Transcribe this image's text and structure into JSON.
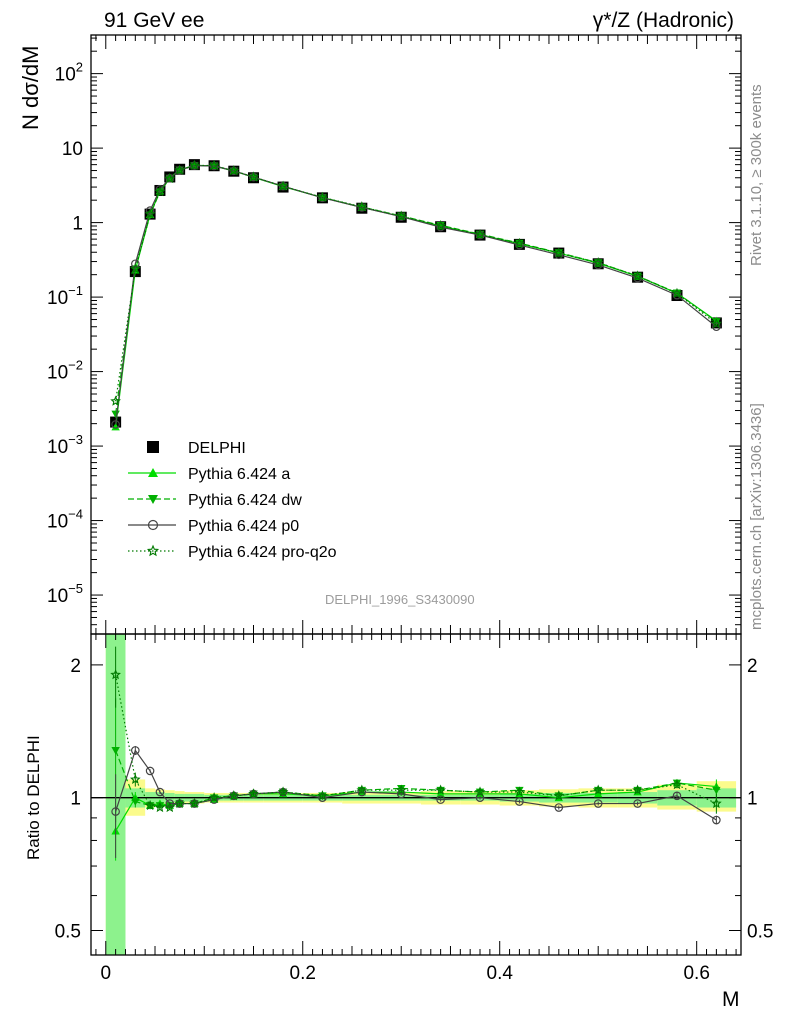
{
  "header": {
    "left": "91 GeV ee",
    "right": "γ*/Z (Hadronic)"
  },
  "side": {
    "rivet": "Rivet 3.1.10, ≥ 300k events",
    "mcplots": "mcplots.cern.ch [arXiv:1306.3436]"
  },
  "colors": {
    "data": "#000000",
    "a": "#00dd00",
    "dw": "#00b000",
    "p0": "#444444",
    "proq2o": "#007a00",
    "band_green": "#8df28d",
    "band_yellow": "#fbfb8c"
  },
  "chart_data": [
    {
      "type": "line",
      "name": "main",
      "title": "",
      "xlabel": "M",
      "ylabel": "N dσ/dM",
      "yscale": "log",
      "xlim": [
        -0.015,
        0.645
      ],
      "ylim": [
        3e-06,
        330
      ],
      "reference_label": "DELPHI_1996_S3430090",
      "legend_location": "lower-left",
      "y_ticks": [
        {
          "value": 100,
          "base": "10",
          "exp": "2"
        },
        {
          "value": 10,
          "base": "10",
          "exp": ""
        },
        {
          "value": 1,
          "base": "1",
          "exp": ""
        },
        {
          "value": 0.1,
          "base": "10",
          "exp": "−1"
        },
        {
          "value": 0.01,
          "base": "10",
          "exp": "−2"
        },
        {
          "value": 0.001,
          "base": "10",
          "exp": "−3"
        },
        {
          "value": 0.0001,
          "base": "10",
          "exp": "−4"
        },
        {
          "value": 1e-05,
          "base": "10",
          "exp": "−5"
        }
      ],
      "x": [
        0.01,
        0.03,
        0.045,
        0.055,
        0.065,
        0.075,
        0.09,
        0.11,
        0.13,
        0.15,
        0.18,
        0.22,
        0.26,
        0.3,
        0.34,
        0.38,
        0.42,
        0.46,
        0.5,
        0.54,
        0.58,
        0.62
      ],
      "series": [
        {
          "name": "DELPHI",
          "key": "data",
          "marker": "square",
          "values": [
            0.0021,
            0.22,
            1.3,
            2.7,
            4.1,
            5.2,
            6.0,
            5.8,
            4.9,
            4.0,
            3.0,
            2.15,
            1.56,
            1.18,
            0.88,
            0.68,
            0.51,
            0.39,
            0.28,
            0.185,
            0.105,
            0.045
          ]
        },
        {
          "name": "Pythia 6.424 a",
          "key": "a",
          "marker": "triangle-up",
          "dash": "",
          "values": [
            0.0018,
            0.23,
            1.28,
            2.65,
            4.0,
            5.1,
            5.9,
            5.75,
            4.93,
            4.05,
            3.05,
            2.17,
            1.6,
            1.21,
            0.9,
            0.69,
            0.52,
            0.39,
            0.285,
            0.19,
            0.113,
            0.048
          ]
        },
        {
          "name": "Pythia 6.424 dw",
          "key": "dw",
          "marker": "triangle-down",
          "dash": "6,3",
          "values": [
            0.0027,
            0.24,
            1.27,
            2.6,
            3.95,
            5.1,
            5.85,
            5.8,
            4.95,
            4.08,
            3.07,
            2.17,
            1.62,
            1.23,
            0.92,
            0.7,
            0.53,
            0.395,
            0.29,
            0.192,
            0.114,
            0.047
          ]
        },
        {
          "name": "Pythia 6.424 p0",
          "key": "p0",
          "marker": "circle-open",
          "dash": "",
          "values": [
            0.00195,
            0.28,
            1.45,
            2.8,
            3.95,
            5.05,
            5.82,
            5.75,
            4.95,
            4.08,
            3.08,
            2.15,
            1.6,
            1.2,
            0.87,
            0.68,
            0.5,
            0.37,
            0.27,
            0.18,
            0.106,
            0.04
          ]
        },
        {
          "name": "Pythia 6.424 pro-q2o",
          "key": "proq2o",
          "marker": "star-open",
          "dash": "1.5,2.5",
          "values": [
            0.004,
            0.24,
            1.3,
            2.6,
            3.9,
            5.05,
            5.85,
            5.85,
            4.97,
            4.1,
            3.08,
            2.18,
            1.63,
            1.22,
            0.91,
            0.69,
            0.525,
            0.39,
            0.29,
            0.192,
            0.112,
            0.044
          ]
        }
      ]
    },
    {
      "type": "line",
      "name": "ratio",
      "title": "",
      "xlabel": "M",
      "ylabel": "Ratio to DELPHI",
      "yscale": "log",
      "xlim": [
        -0.015,
        0.645
      ],
      "ylim": [
        0.44,
        2.35
      ],
      "x_ticks": [
        "0",
        "0.2",
        "0.4",
        "0.6"
      ],
      "x_tick_values": [
        0,
        0.2,
        0.4,
        0.6
      ],
      "y_ticks": [
        "2",
        "1",
        "0.5"
      ],
      "y_tick_values": [
        2,
        1,
        0.5
      ],
      "x": [
        0.01,
        0.03,
        0.045,
        0.055,
        0.065,
        0.075,
        0.09,
        0.11,
        0.13,
        0.15,
        0.18,
        0.22,
        0.26,
        0.3,
        0.34,
        0.38,
        0.42,
        0.46,
        0.5,
        0.54,
        0.58,
        0.62
      ],
      "band_bin_edges": [
        0.0,
        0.02,
        0.04,
        0.05,
        0.06,
        0.07,
        0.08,
        0.1,
        0.12,
        0.14,
        0.16,
        0.2,
        0.24,
        0.28,
        0.32,
        0.36,
        0.4,
        0.44,
        0.48,
        0.52,
        0.56,
        0.6,
        0.64
      ],
      "band_inner": [
        [
          0.44,
          2.35
        ],
        [
          0.95,
          1.05
        ],
        [
          0.97,
          1.03
        ],
        [
          0.97,
          1.03
        ],
        [
          0.975,
          1.025
        ],
        [
          0.98,
          1.02
        ],
        [
          0.98,
          1.02
        ],
        [
          0.985,
          1.015
        ],
        [
          0.985,
          1.015
        ],
        [
          0.985,
          1.015
        ],
        [
          0.985,
          1.015
        ],
        [
          0.985,
          1.015
        ],
        [
          0.985,
          1.015
        ],
        [
          0.985,
          1.015
        ],
        [
          0.985,
          1.015
        ],
        [
          0.985,
          1.015
        ],
        [
          0.98,
          1.02
        ],
        [
          0.975,
          1.025
        ],
        [
          0.975,
          1.025
        ],
        [
          0.97,
          1.03
        ],
        [
          0.96,
          1.04
        ],
        [
          0.95,
          1.05
        ]
      ],
      "band_outer": [
        [
          0.44,
          2.35
        ],
        [
          0.91,
          1.1
        ],
        [
          0.95,
          1.05
        ],
        [
          0.955,
          1.045
        ],
        [
          0.96,
          1.04
        ],
        [
          0.965,
          1.035
        ],
        [
          0.97,
          1.03
        ],
        [
          0.975,
          1.025
        ],
        [
          0.975,
          1.025
        ],
        [
          0.975,
          1.025
        ],
        [
          0.975,
          1.025
        ],
        [
          0.975,
          1.025
        ],
        [
          0.97,
          1.03
        ],
        [
          0.97,
          1.03
        ],
        [
          0.965,
          1.035
        ],
        [
          0.965,
          1.035
        ],
        [
          0.96,
          1.04
        ],
        [
          0.955,
          1.045
        ],
        [
          0.95,
          1.05
        ],
        [
          0.95,
          1.05
        ],
        [
          0.94,
          1.07
        ],
        [
          0.93,
          1.09
        ]
      ],
      "series": [
        {
          "name": "Pythia 6.424 a",
          "key": "a",
          "marker": "triangle-up",
          "dash": "",
          "values": [
            0.84,
            1.0,
            0.96,
            0.97,
            0.96,
            0.97,
            0.97,
            0.99,
            1.01,
            1.02,
            1.02,
            1.01,
            1.03,
            1.03,
            1.02,
            1.02,
            1.02,
            1.0,
            1.02,
            1.03,
            1.08,
            1.06
          ],
          "err_lo": [
            0.12,
            0.03,
            0.01,
            0.01,
            0.01,
            0.01,
            0.01,
            0.01,
            0.01,
            0.01,
            0.01,
            0.01,
            0.01,
            0.01,
            0.01,
            0.01,
            0.01,
            0.01,
            0.01,
            0.01,
            0.02,
            0.04
          ],
          "err_hi": [
            0.12,
            0.03,
            0.01,
            0.01,
            0.01,
            0.01,
            0.01,
            0.01,
            0.01,
            0.01,
            0.01,
            0.01,
            0.01,
            0.01,
            0.01,
            0.01,
            0.01,
            0.01,
            0.01,
            0.01,
            0.02,
            0.04
          ]
        },
        {
          "name": "Pythia 6.424 dw",
          "key": "dw",
          "marker": "triangle-down",
          "dash": "6,3",
          "values": [
            1.28,
            0.98,
            0.96,
            0.96,
            0.96,
            0.97,
            0.97,
            1.0,
            1.01,
            1.02,
            1.03,
            1.01,
            1.04,
            1.05,
            1.04,
            1.03,
            1.04,
            1.01,
            1.04,
            1.04,
            1.08,
            1.04
          ],
          "err_lo": [
            0.4,
            0.03,
            0.01,
            0.01,
            0.01,
            0.01,
            0.01,
            0.01,
            0.01,
            0.01,
            0.01,
            0.01,
            0.01,
            0.01,
            0.01,
            0.01,
            0.01,
            0.01,
            0.01,
            0.01,
            0.02,
            0.04
          ],
          "err_hi": [
            0.4,
            0.03,
            0.01,
            0.01,
            0.01,
            0.01,
            0.01,
            0.01,
            0.01,
            0.01,
            0.01,
            0.01,
            0.01,
            0.01,
            0.01,
            0.01,
            0.01,
            0.01,
            0.01,
            0.01,
            0.02,
            0.04
          ]
        },
        {
          "name": "Pythia 6.424 p0",
          "key": "p0",
          "marker": "circle-open",
          "dash": "",
          "values": [
            0.93,
            1.28,
            1.15,
            1.03,
            0.97,
            0.97,
            0.97,
            0.99,
            1.01,
            1.02,
            1.03,
            1.0,
            1.03,
            1.02,
            0.99,
            1.0,
            0.98,
            0.95,
            0.97,
            0.97,
            1.01,
            0.89
          ],
          "err_lo": [
            0.2,
            0.03,
            0.01,
            0.01,
            0.01,
            0.01,
            0.01,
            0.01,
            0.01,
            0.01,
            0.01,
            0.01,
            0.01,
            0.01,
            0.01,
            0.01,
            0.01,
            0.01,
            0.01,
            0.01,
            0.02,
            0.02
          ],
          "err_hi": [
            0.2,
            0.03,
            0.01,
            0.01,
            0.01,
            0.01,
            0.01,
            0.01,
            0.01,
            0.01,
            0.01,
            0.01,
            0.01,
            0.01,
            0.01,
            0.01,
            0.01,
            0.01,
            0.01,
            0.01,
            0.02,
            0.02
          ]
        },
        {
          "name": "Pythia 6.424 pro-q2o",
          "key": "proq2o",
          "marker": "star-open",
          "dash": "1.5,2.5",
          "values": [
            1.9,
            1.1,
            0.96,
            0.95,
            0.95,
            0.97,
            0.97,
            1.0,
            1.01,
            1.02,
            1.03,
            1.01,
            1.04,
            1.04,
            1.04,
            1.03,
            1.03,
            1.01,
            1.04,
            1.04,
            1.07,
            0.97
          ],
          "err_lo": [
            0.3,
            0.04,
            0.01,
            0.01,
            0.01,
            0.01,
            0.01,
            0.01,
            0.01,
            0.01,
            0.01,
            0.01,
            0.01,
            0.01,
            0.01,
            0.01,
            0.01,
            0.01,
            0.01,
            0.01,
            0.02,
            0.05
          ],
          "err_hi": [
            0.3,
            0.04,
            0.01,
            0.01,
            0.01,
            0.01,
            0.01,
            0.01,
            0.01,
            0.01,
            0.01,
            0.01,
            0.01,
            0.01,
            0.01,
            0.01,
            0.01,
            0.01,
            0.01,
            0.01,
            0.02,
            0.05
          ]
        }
      ]
    }
  ]
}
